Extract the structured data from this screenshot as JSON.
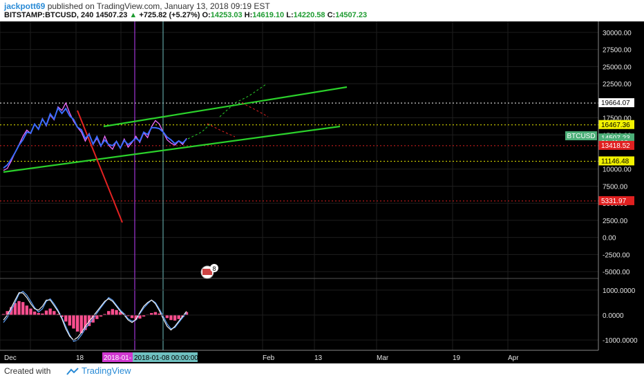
{
  "header": {
    "username": "jackpott69",
    "published_text": "published on TradingView.com, January 13, 2018 09:19 EST",
    "symbol": "BITSTAMP:BTCUSD, 240",
    "last": "14507.23",
    "change_arrow": "▲",
    "change": "+725.82 (+5.27%)",
    "o_label": "O:",
    "o_value": "14253.03",
    "h_label": "H:",
    "h_value": "14619.10",
    "l_label": "L:",
    "l_value": "14220.58",
    "c_label": "C:",
    "c_value": "14507.23"
  },
  "footer": {
    "created_with": "Created with",
    "brand": "TradingView"
  },
  "chart_data": {
    "type": "line",
    "y_axis_ticks": [
      "30000.00",
      "27500.00",
      "25000.00",
      "22500.00",
      "17500.00",
      "15000.00",
      "10000.00",
      "7500.00",
      "5000.00",
      "2500.00",
      "0.00",
      "-2500.00",
      "-5000.00"
    ],
    "x_axis_ticks": [
      "Dec",
      "18",
      "Feb",
      "13",
      "Mar",
      "19",
      "Apr"
    ],
    "ylim": [
      -6000,
      31000
    ],
    "price_labels": [
      {
        "text": "19664.07",
        "value": 19664.07,
        "color": "#ffffff",
        "line_color": "#ffffff"
      },
      {
        "text": "16467.36",
        "value": 16467.36,
        "color": "#f2f200",
        "line_color": "#f2f200"
      },
      {
        "text": "14507.23",
        "value": 14507.23,
        "color": "#4caf78",
        "line_color": null
      },
      {
        "text": "01:41:18",
        "value": 13800,
        "color": "#4caf78",
        "line_color": null
      },
      {
        "text": "13418.52",
        "value": 13418.52,
        "color": "#e02020",
        "line_color": "#e02020"
      },
      {
        "text": "11146.48",
        "value": 11146.48,
        "color": "#f2f200",
        "line_color": "#f2f200"
      },
      {
        "text": "5331.97",
        "value": 5331.97,
        "color": "#e02020",
        "line_color": "#e02020"
      }
    ],
    "symbol_tag": "BTCUSD",
    "cursor_dates": [
      "2018-01-",
      "2018-01-08 00:00:00"
    ],
    "badge_count": "8",
    "price_series": [
      [
        0,
        9800
      ],
      [
        1,
        10100
      ],
      [
        2,
        11200
      ],
      [
        3,
        12400
      ],
      [
        4,
        13600
      ],
      [
        5,
        14800
      ],
      [
        6,
        15700
      ],
      [
        7,
        15200
      ],
      [
        8,
        16600
      ],
      [
        9,
        15900
      ],
      [
        10,
        17400
      ],
      [
        11,
        16300
      ],
      [
        12,
        17900
      ],
      [
        13,
        17200
      ],
      [
        14,
        19100
      ],
      [
        15,
        18600
      ],
      [
        16,
        19664
      ],
      [
        17,
        18200
      ],
      [
        18,
        17000
      ],
      [
        19,
        16100
      ],
      [
        20,
        15400
      ],
      [
        21,
        14100
      ],
      [
        22,
        15200
      ],
      [
        23,
        13600
      ],
      [
        24,
        14500
      ],
      [
        25,
        13300
      ],
      [
        26,
        14800
      ],
      [
        27,
        13500
      ],
      [
        28,
        12900
      ],
      [
        29,
        14100
      ],
      [
        30,
        13100
      ],
      [
        31,
        14400
      ],
      [
        32,
        13200
      ],
      [
        33,
        13900
      ],
      [
        34,
        14800
      ],
      [
        35,
        13900
      ],
      [
        36,
        15300
      ],
      [
        37,
        14600
      ],
      [
        38,
        16200
      ],
      [
        39,
        17100
      ],
      [
        40,
        16600
      ],
      [
        41,
        15400
      ],
      [
        42,
        14300
      ],
      [
        43,
        13800
      ],
      [
        44,
        13500
      ],
      [
        45,
        14100
      ],
      [
        46,
        13600
      ],
      [
        47,
        14507
      ]
    ],
    "oscillator": {
      "yticks": [
        "1000.0000",
        "0.0000",
        "-1000.0000"
      ],
      "ylim": [
        -1300,
        1300
      ],
      "histogram": [
        40,
        160,
        320,
        480,
        560,
        520,
        380,
        260,
        140,
        80,
        60,
        180,
        260,
        160,
        40,
        -80,
        -260,
        -420,
        -540,
        -660,
        -720,
        -600,
        -440,
        -300,
        -160,
        -60,
        40,
        160,
        240,
        200,
        120,
        40,
        -40,
        -120,
        -180,
        -140,
        -60,
        20,
        80,
        120,
        60,
        -20,
        -120,
        -200,
        -220,
        -160,
        -80,
        120
      ],
      "signal": [
        -300,
        -100,
        200,
        500,
        850,
        950,
        800,
        550,
        300,
        120,
        250,
        550,
        650,
        450,
        200,
        -100,
        -450,
        -800,
        -1050,
        -1000,
        -800,
        -550,
        -350,
        -150,
        80,
        300,
        500,
        700,
        600,
        400,
        200,
        50,
        -150,
        -250,
        -200,
        50,
        280,
        450,
        600,
        500,
        250,
        -50,
        -350,
        -550,
        -500,
        -300,
        -100,
        80
      ],
      "macd": [
        -200,
        0,
        300,
        600,
        900,
        880,
        700,
        450,
        250,
        200,
        350,
        600,
        600,
        380,
        150,
        -150,
        -550,
        -850,
        -1000,
        -900,
        -700,
        -450,
        -250,
        -50,
        150,
        350,
        550,
        650,
        550,
        350,
        150,
        0,
        -200,
        -300,
        -180,
        100,
        350,
        500,
        600,
        450,
        180,
        -150,
        -450,
        -600,
        -450,
        -250,
        -50,
        150
      ]
    },
    "colors": {
      "background": "#000000",
      "price_line": "#f06cff",
      "price_line_2": "#3b6cff",
      "channel": "#2bd12b",
      "red_line": "#e32222",
      "histogram": "#ff4f8f",
      "signal": "#5fa4ff",
      "macd": "#f0f0f0"
    }
  }
}
